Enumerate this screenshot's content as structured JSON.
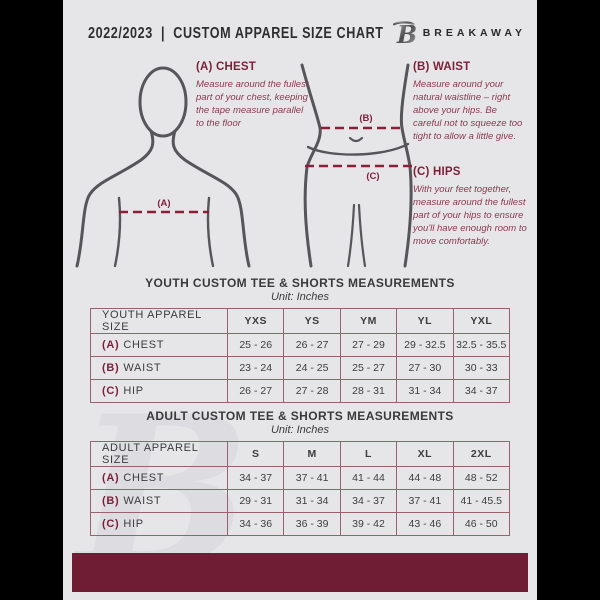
{
  "header": {
    "title": "2022/2023  |  CUSTOM APPAREL SIZE CHART",
    "brand": "BREAKAWAY",
    "logo_letter": "B"
  },
  "instructions": {
    "chest": {
      "heading": "(A) CHEST",
      "body": "Measure around the fullest part of your chest, keeping the tape measure parallel to the floor"
    },
    "waist": {
      "heading": "(B) WAIST",
      "body": "Measure around your natural waistline – right above your hips. Be careful not to squeeze too tight to allow a little give."
    },
    "hips": {
      "heading": "(C) HIPS",
      "body": "With your feet together, measure around the fullest part of your hips to ensure you'll have enough room to move comfortably."
    }
  },
  "diagram": {
    "labels": {
      "chest": "(A)",
      "waist": "(B)",
      "hips": "(C)"
    }
  },
  "youth": {
    "title": "YOUTH CUSTOM TEE & SHORTS MEASUREMENTS",
    "unit": "Unit: Inches",
    "header_row": [
      "YOUTH APPAREL SIZE",
      "YXS",
      "YS",
      "YM",
      "YL",
      "YXL"
    ],
    "rows": [
      {
        "letter": "(A)",
        "label": "CHEST",
        "values": [
          "25 - 26",
          "26 - 27",
          "27 - 29",
          "29 - 32.5",
          "32.5 - 35.5"
        ]
      },
      {
        "letter": "(B)",
        "label": "WAIST",
        "values": [
          "23 - 24",
          "24 - 25",
          "25 - 27",
          "27 - 30",
          "30 - 33"
        ]
      },
      {
        "letter": "(C)",
        "label": "HIP",
        "values": [
          "26 - 27",
          "27 - 28",
          "28 - 31",
          "31 - 34",
          "34 - 37"
        ]
      }
    ]
  },
  "adult": {
    "title": "ADULT CUSTOM TEE & SHORTS MEASUREMENTS",
    "unit": "Unit: Inches",
    "header_row": [
      "ADULT APPAREL SIZE",
      "S",
      "M",
      "L",
      "XL",
      "2XL"
    ],
    "rows": [
      {
        "letter": "(A)",
        "label": "CHEST",
        "values": [
          "34 - 37",
          "37 - 41",
          "41 - 44",
          "44 - 48",
          "48 - 52"
        ]
      },
      {
        "letter": "(B)",
        "label": "WAIST",
        "values": [
          "29 - 31",
          "31 - 34",
          "34 - 37",
          "37 - 41",
          "41 - 45.5"
        ]
      },
      {
        "letter": "(C)",
        "label": "HIP",
        "values": [
          "34 - 36",
          "36 - 39",
          "39 - 42",
          "43 - 46",
          "46 - 50"
        ]
      }
    ]
  },
  "watermark": "B",
  "colors": {
    "page_background": "#e6e6e8",
    "side_background": "#000000",
    "maroon_accent": "#7d1f39",
    "maroon_body_text": "#8d3850",
    "maroon_bar": "#6f1d35",
    "table_line": "#97616d",
    "text_dark": "#3a3a3c",
    "figure_stroke": "#56565a",
    "dashed_line": "#8a1f39"
  }
}
